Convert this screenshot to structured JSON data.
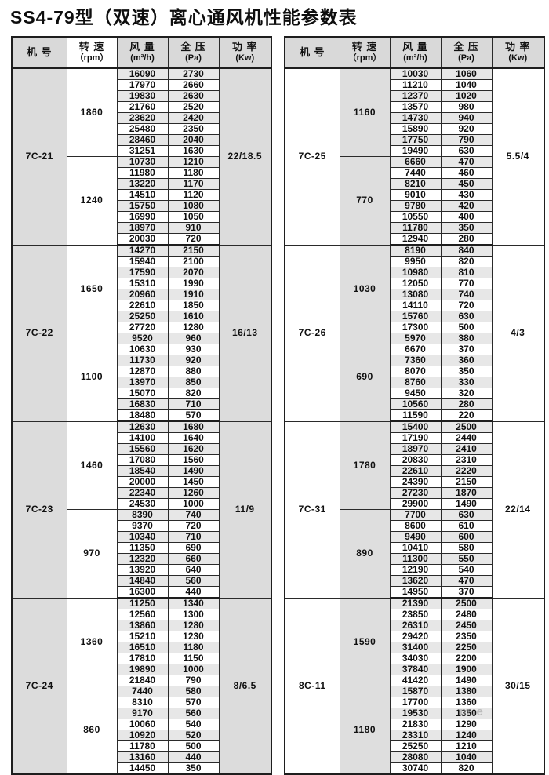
{
  "page": {
    "title": "SS4-79型（双速）离心通风机性能参数表",
    "watermark": "m.e"
  },
  "columns": {
    "model": "机 号",
    "speed": "转 速",
    "speed_unit": "（rpm）",
    "flow": "风 量",
    "flow_unit": "(m³/h)",
    "pressure": "全 压",
    "pressure_unit": "(Pa)",
    "power": "功 率",
    "power_unit": "(Kw)"
  },
  "tables": [
    {
      "blocks": [
        {
          "model": "7C-21",
          "power": "22/18.5",
          "groups": [
            {
              "speed": "1860",
              "rows": [
                [
                  16090,
                  2730
                ],
                [
                  17970,
                  2660
                ],
                [
                  19830,
                  2630
                ],
                [
                  21760,
                  2520
                ],
                [
                  23620,
                  2420
                ],
                [
                  25480,
                  2350
                ],
                [
                  28460,
                  2040
                ],
                [
                  31251,
                  1630
                ]
              ]
            },
            {
              "speed": "1240",
              "rows": [
                [
                  10730,
                  1210
                ],
                [
                  11980,
                  1180
                ],
                [
                  13220,
                  1170
                ],
                [
                  14510,
                  1120
                ],
                [
                  15750,
                  1080
                ],
                [
                  16990,
                  1050
                ],
                [
                  18970,
                  910
                ],
                [
                  20030,
                  720
                ]
              ]
            }
          ]
        },
        {
          "model": "7C-22",
          "power": "16/13",
          "groups": [
            {
              "speed": "1650",
              "rows": [
                [
                  14270,
                  2150
                ],
                [
                  15940,
                  2100
                ],
                [
                  17590,
                  2070
                ],
                [
                  15310,
                  1990
                ],
                [
                  20960,
                  1910
                ],
                [
                  22610,
                  1850
                ],
                [
                  25250,
                  1610
                ],
                [
                  27720,
                  1280
                ]
              ]
            },
            {
              "speed": "1100",
              "rows": [
                [
                  9520,
                  960
                ],
                [
                  10630,
                  930
                ],
                [
                  11730,
                  920
                ],
                [
                  12870,
                  880
                ],
                [
                  13970,
                  850
                ],
                [
                  15070,
                  820
                ],
                [
                  16830,
                  710
                ],
                [
                  18480,
                  570
                ]
              ]
            }
          ]
        },
        {
          "model": "7C-23",
          "power": "11/9",
          "groups": [
            {
              "speed": "1460",
              "rows": [
                [
                  12630,
                  1680
                ],
                [
                  14100,
                  1640
                ],
                [
                  15560,
                  1620
                ],
                [
                  17080,
                  1560
                ],
                [
                  18540,
                  1490
                ],
                [
                  20000,
                  1450
                ],
                [
                  22340,
                  1260
                ],
                [
                  24530,
                  1000
                ]
              ]
            },
            {
              "speed": "970",
              "rows": [
                [
                  8390,
                  740
                ],
                [
                  9370,
                  720
                ],
                [
                  10340,
                  710
                ],
                [
                  11350,
                  690
                ],
                [
                  12320,
                  660
                ],
                [
                  13920,
                  640
                ],
                [
                  14840,
                  560
                ],
                [
                  16300,
                  440
                ]
              ]
            }
          ]
        },
        {
          "model": "7C-24",
          "power": "8/6.5",
          "groups": [
            {
              "speed": "1360",
              "rows": [
                [
                  11250,
                  1340
                ],
                [
                  12560,
                  1300
                ],
                [
                  13860,
                  1280
                ],
                [
                  15210,
                  1230
                ],
                [
                  16510,
                  1180
                ],
                [
                  17810,
                  1150
                ],
                [
                  19890,
                  1000
                ],
                [
                  21840,
                  790
                ]
              ]
            },
            {
              "speed": "860",
              "rows": [
                [
                  7440,
                  580
                ],
                [
                  8310,
                  570
                ],
                [
                  9170,
                  560
                ],
                [
                  10060,
                  540
                ],
                [
                  10920,
                  520
                ],
                [
                  11780,
                  500
                ],
                [
                  13160,
                  440
                ],
                [
                  14450,
                  350
                ]
              ]
            }
          ]
        }
      ]
    },
    {
      "blocks": [
        {
          "model": "7C-25",
          "power": "5.5/4",
          "groups": [
            {
              "speed": "1160",
              "rows": [
                [
                  10030,
                  1060
                ],
                [
                  11210,
                  1040
                ],
                [
                  12370,
                  1020
                ],
                [
                  13570,
                  980
                ],
                [
                  14730,
                  940
                ],
                [
                  15890,
                  920
                ],
                [
                  17750,
                  790
                ],
                [
                  19490,
                  630
                ]
              ]
            },
            {
              "speed": "770",
              "rows": [
                [
                  6660,
                  470
                ],
                [
                  7440,
                  460
                ],
                [
                  8210,
                  450
                ],
                [
                  9010,
                  430
                ],
                [
                  9780,
                  420
                ],
                [
                  10550,
                  400
                ],
                [
                  11780,
                  350
                ],
                [
                  12940,
                  280
                ]
              ]
            }
          ]
        },
        {
          "model": "7C-26",
          "power": "4/3",
          "groups": [
            {
              "speed": "1030",
              "rows": [
                [
                  8190,
                  840
                ],
                [
                  9950,
                  820
                ],
                [
                  10980,
                  810
                ],
                [
                  12050,
                  770
                ],
                [
                  13080,
                  740
                ],
                [
                  14110,
                  720
                ],
                [
                  15760,
                  630
                ],
                [
                  17300,
                  500
                ]
              ]
            },
            {
              "speed": "690",
              "rows": [
                [
                  5970,
                  380
                ],
                [
                  6670,
                  370
                ],
                [
                  7360,
                  360
                ],
                [
                  8070,
                  350
                ],
                [
                  8760,
                  330
                ],
                [
                  9450,
                  320
                ],
                [
                  10560,
                  280
                ],
                [
                  11590,
                  220
                ]
              ]
            }
          ]
        },
        {
          "model": "7C-31",
          "power": "22/14",
          "groups": [
            {
              "speed": "1780",
              "rows": [
                [
                  15400,
                  2500
                ],
                [
                  17190,
                  2440
                ],
                [
                  18970,
                  2410
                ],
                [
                  20830,
                  2310
                ],
                [
                  22610,
                  2220
                ],
                [
                  24390,
                  2150
                ],
                [
                  27230,
                  1870
                ],
                [
                  29900,
                  1490
                ]
              ]
            },
            {
              "speed": "890",
              "rows": [
                [
                  7700,
                  630
                ],
                [
                  8600,
                  610
                ],
                [
                  9490,
                  600
                ],
                [
                  10410,
                  580
                ],
                [
                  11300,
                  550
                ],
                [
                  12190,
                  540
                ],
                [
                  13620,
                  470
                ],
                [
                  14950,
                  370
                ]
              ]
            }
          ]
        },
        {
          "model": "8C-11",
          "power": "30/15",
          "groups": [
            {
              "speed": "1590",
              "rows": [
                [
                  21390,
                  2500
                ],
                [
                  23850,
                  2480
                ],
                [
                  26310,
                  2450
                ],
                [
                  29420,
                  2350
                ],
                [
                  31400,
                  2250
                ],
                [
                  34030,
                  2200
                ],
                [
                  37840,
                  1900
                ],
                [
                  41420,
                  1490
                ]
              ]
            },
            {
              "speed": "1180",
              "rows": [
                [
                  15870,
                  1380
                ],
                [
                  17700,
                  1360
                ],
                [
                  19530,
                  1350
                ],
                [
                  21830,
                  1290
                ],
                [
                  23310,
                  1240
                ],
                [
                  25250,
                  1210
                ],
                [
                  28080,
                  1040
                ],
                [
                  30740,
                  820
                ]
              ]
            }
          ]
        }
      ]
    }
  ]
}
